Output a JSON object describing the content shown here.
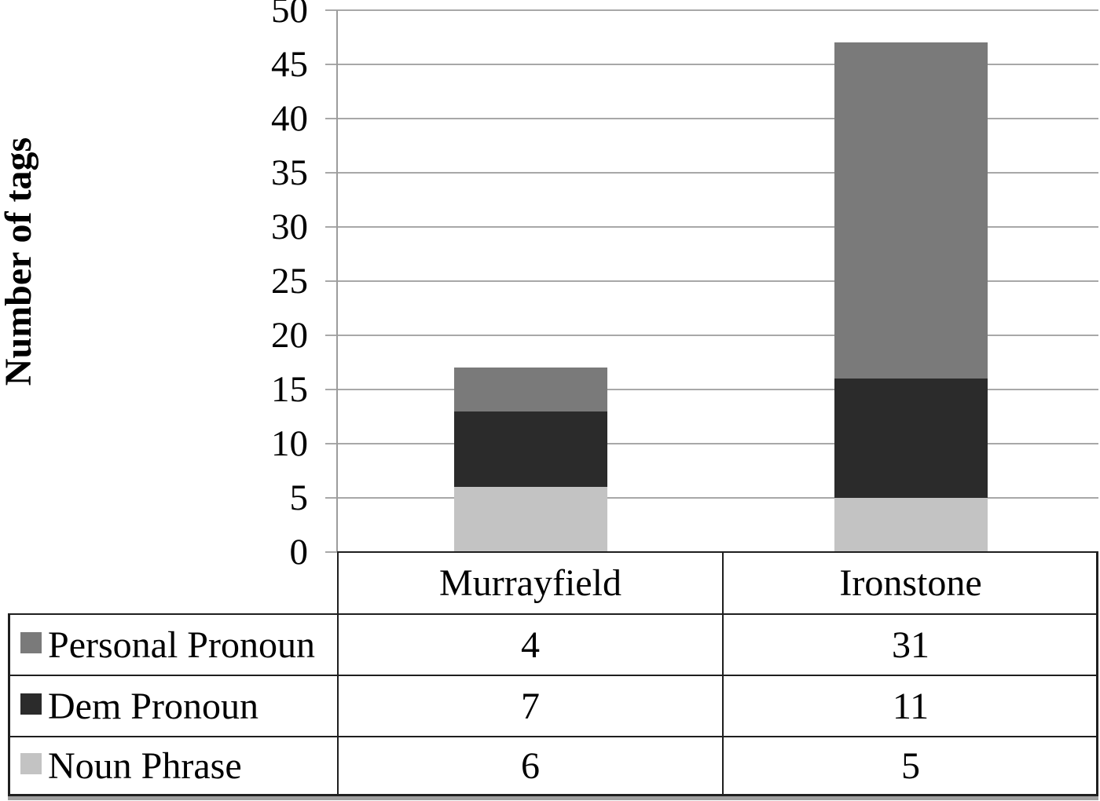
{
  "chart_data": {
    "type": "bar",
    "stacked": true,
    "title": "",
    "xlabel": "",
    "ylabel": "Number of tags",
    "categories": [
      "Murrayfield",
      "Ironstone"
    ],
    "series": [
      {
        "name": "Personal Pronoun",
        "color": "#7a7a7a",
        "values": [
          4,
          31
        ]
      },
      {
        "name": "Dem Pronoun",
        "color": "#2b2b2b",
        "values": [
          7,
          11
        ]
      },
      {
        "name": "Noun Phrase",
        "color": "#c3c3c3",
        "values": [
          6,
          5
        ]
      }
    ],
    "stack_order_bottom_to_top": [
      "Noun Phrase",
      "Dem Pronoun",
      "Personal Pronoun"
    ],
    "totals": {
      "Murrayfield": 17,
      "Ironstone": 47
    },
    "ylim": [
      0,
      50
    ],
    "yticks": [
      0,
      5,
      10,
      15,
      20,
      25,
      30,
      35,
      40,
      45,
      50
    ],
    "grid": true,
    "legend_position": "table-left",
    "colors": {
      "gridline": "#a8a8a8",
      "axis": "#9c9c9c",
      "table_border": "#1f1f1f",
      "table_shadow": "#a0a0a0",
      "text": "#000000",
      "background": "#ffffff"
    }
  }
}
